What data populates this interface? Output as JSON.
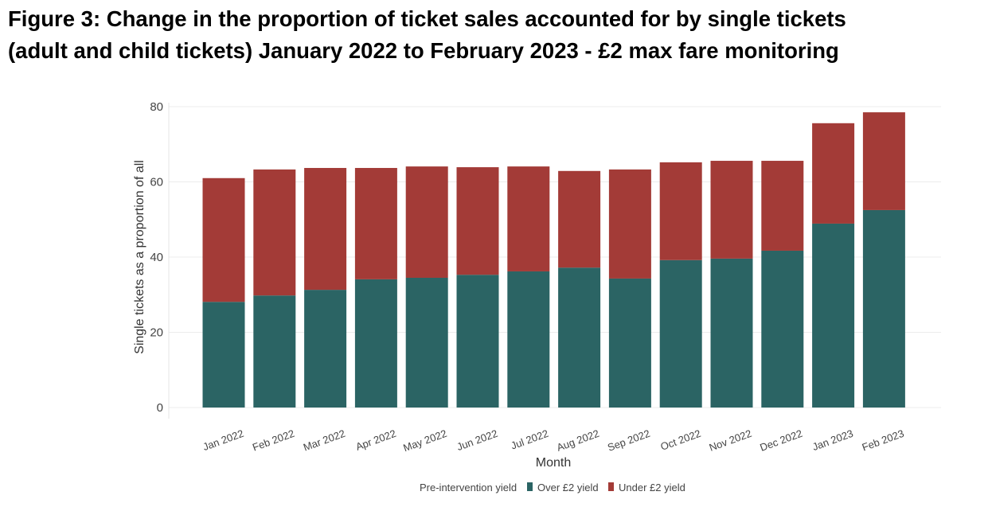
{
  "title_lines": [
    "Figure 3: Change in the proportion of ticket sales accounted for by single tickets",
    "(adult and child tickets) January 2022 to February 2023 - £2 max fare monitoring"
  ],
  "chart_data": {
    "type": "bar",
    "stacked": true,
    "categories": [
      "Jan 2022",
      "Feb 2022",
      "Mar 2022",
      "Apr 2022",
      "May 2022",
      "Jun 2022",
      "Jul 2022",
      "Aug 2022",
      "Sep 2022",
      "Oct 2022",
      "Nov 2022",
      "Dec 2022",
      "Jan 2023",
      "Feb 2023"
    ],
    "series": [
      {
        "name": "Over £2 yield",
        "color": "#2b6464",
        "values": [
          28.1,
          29.8,
          31.3,
          34.1,
          34.5,
          35.3,
          36.2,
          37.2,
          34.3,
          39.2,
          39.6,
          41.7,
          48.9,
          52.5
        ]
      },
      {
        "name": "Under £2 yield",
        "color": "#a33b37",
        "values": [
          32.9,
          33.5,
          32.4,
          29.6,
          29.6,
          28.6,
          27.9,
          25.7,
          29.0,
          26.0,
          26.0,
          23.9,
          26.7,
          26.0
        ]
      }
    ],
    "xlabel": "Month",
    "ylabel": "Single tickets as a proportion of all",
    "ylim": [
      0,
      80
    ],
    "yticks": [
      0,
      20,
      40,
      60,
      80
    ],
    "grid": true,
    "legend_title": "Pre-intervention yield",
    "legend_placement": "bottom"
  }
}
